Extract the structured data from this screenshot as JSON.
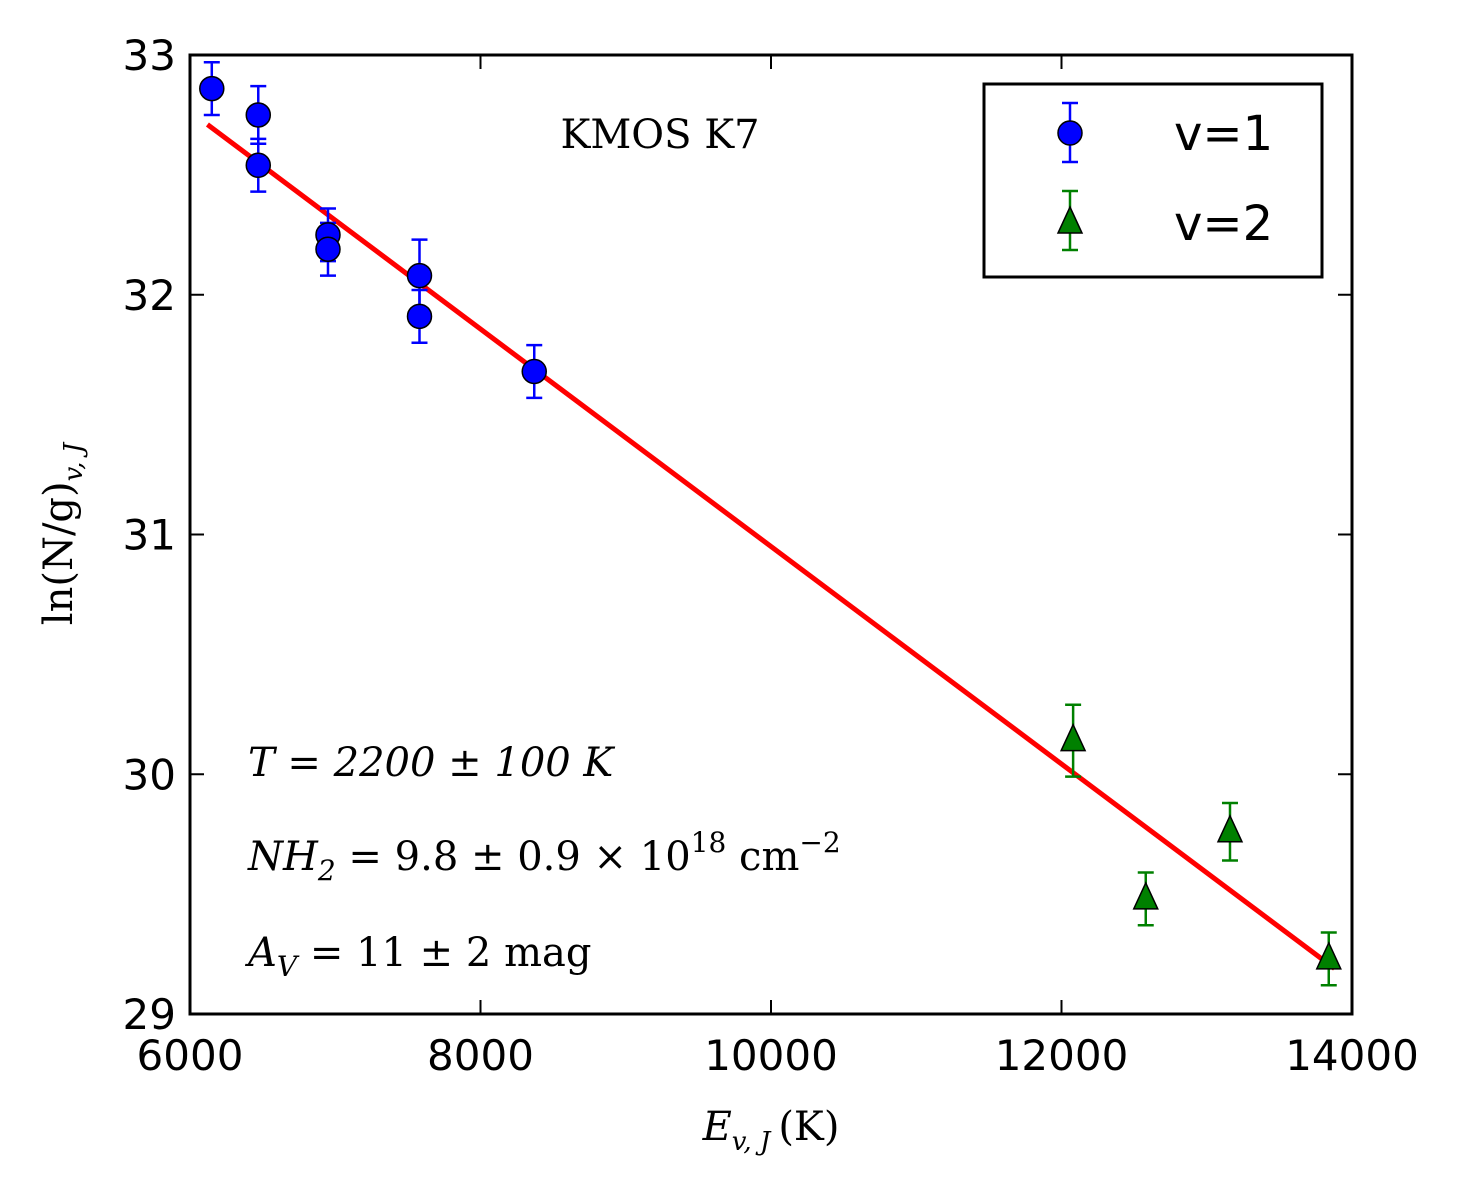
{
  "chart_data": {
    "type": "scatter",
    "title": "KMOS K7",
    "xlabel": "E_{v,J} (K)",
    "ylabel": "ln(N/g)_{v,J}",
    "xlim": [
      6000,
      14000
    ],
    "ylim": [
      29,
      33
    ],
    "xticks": [
      6000,
      8000,
      10000,
      12000,
      14000
    ],
    "yticks": [
      29,
      30,
      31,
      32,
      33
    ],
    "grid": false,
    "legend_position": "top-right",
    "series": [
      {
        "name": "v=1",
        "marker": "circle",
        "color": "#0000ff",
        "points": [
          {
            "x": 6150,
            "y": 32.86,
            "err": 0.11
          },
          {
            "x": 6470,
            "y": 32.75,
            "err": 0.12
          },
          {
            "x": 6470,
            "y": 32.54,
            "err": 0.11
          },
          {
            "x": 6950,
            "y": 32.25,
            "err": 0.11
          },
          {
            "x": 6950,
            "y": 32.19,
            "err": 0.11
          },
          {
            "x": 7580,
            "y": 32.08,
            "err": 0.15
          },
          {
            "x": 7580,
            "y": 31.91,
            "err": 0.11
          },
          {
            "x": 8370,
            "y": 31.68,
            "err": 0.11
          }
        ]
      },
      {
        "name": "v=2",
        "marker": "triangle",
        "color": "#008000",
        "points": [
          {
            "x": 12080,
            "y": 30.14,
            "err": 0.15
          },
          {
            "x": 12580,
            "y": 29.48,
            "err": 0.11
          },
          {
            "x": 13160,
            "y": 29.76,
            "err": 0.12
          },
          {
            "x": 13840,
            "y": 29.23,
            "err": 0.11
          }
        ]
      }
    ],
    "fit_line": {
      "color": "#ff0000",
      "x": [
        6120,
        13880
      ],
      "y": [
        32.71,
        29.19
      ]
    },
    "annotations": {
      "temperature": "T = 2200 ± 100 K",
      "column_density": "NH₂ = 9.8 ± 0.9 × 10¹⁸ cm⁻²",
      "extinction": "A_V = 11 ± 2 mag"
    }
  },
  "labels": {
    "title": "KMOS K7",
    "legend_v1": "v=1",
    "legend_v2": "v=2",
    "xlabel_main": "E",
    "xlabel_sub": "v, J",
    "xlabel_unit": "(K)",
    "ylabel_main": "ln(N/g)",
    "ylabel_sub": "v, J",
    "annot_T": "T = 2200 ± 100 K",
    "annot_NH2_a": "NH",
    "annot_NH2_b": "2",
    "annot_NH2_c": " = 9.8 ± 0.9 × 10",
    "annot_NH2_d": "18",
    "annot_NH2_e": " cm",
    "annot_NH2_f": "−2",
    "annot_AV_a": "A",
    "annot_AV_b": "V",
    "annot_AV_c": " = 11 ± 2 mag"
  }
}
